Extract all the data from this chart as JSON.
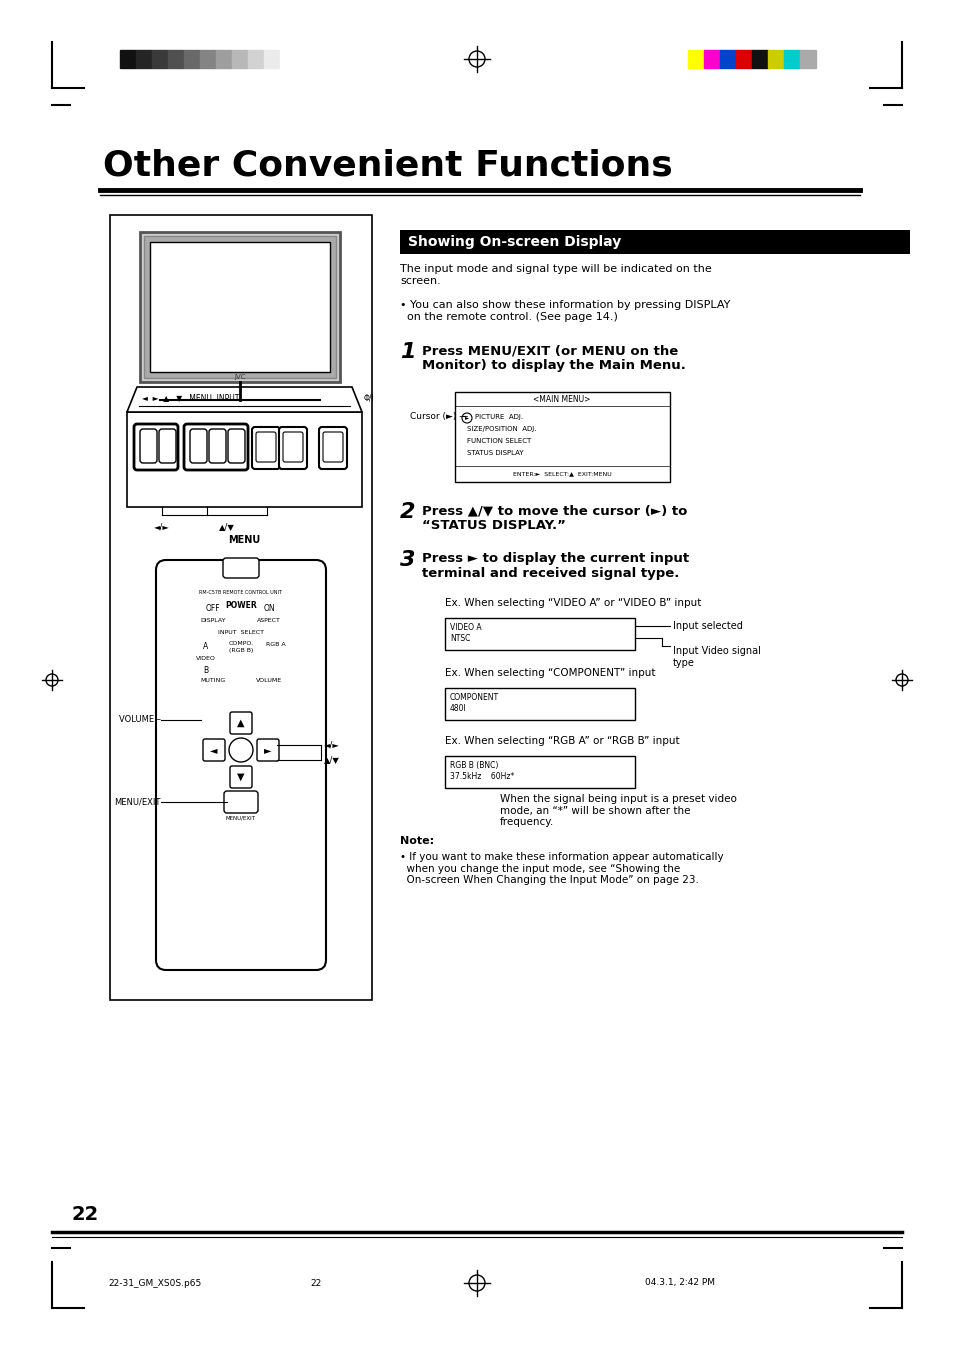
{
  "page_bg": "#ffffff",
  "page_title": "Other Convenient Functions",
  "section_title": "Showing On-screen Display",
  "section_title_bg": "#000000",
  "section_title_color": "#ffffff",
  "body_text_1": "The input mode and signal type will be indicated on the\nscreen.",
  "body_bullet_1": "• You can also show these information by pressing DISPLAY\n  on the remote control. (See page 14.)",
  "step1_num": "1",
  "step1_text": "Press MENU/EXIT (or MENU on the\nMonitor) to display the Main Menu.",
  "step2_num": "2",
  "step2_text": "Press ▲/▼ to move the cursor (►) to\n“STATUS DISPLAY.”",
  "step3_num": "3",
  "step3_text": "Press ► to display the current input\nterminal and received signal type.",
  "ex1_label": "Ex. When selecting “VIDEO A” or “VIDEO B” input",
  "ex1_line1": "VIDEO A",
  "ex1_line2": "NTSC",
  "ex1_arrow1": "Input selected",
  "ex1_arrow2": "Input Video signal\ntype",
  "ex2_label": "Ex. When selecting “COMPONENT” input",
  "ex2_line1": "COMPONENT",
  "ex2_line2": "480I",
  "ex3_label": "Ex. When selecting “RGB A” or “RGB B” input",
  "ex3_line1": "RGB B (BNC)",
  "ex3_line2": "37.5kHz    60Hz*",
  "ex3_note": "When the signal being input is a preset video\nmode, an “*” will be shown after the\nfrequency.",
  "note_title": "Note:",
  "note_text": "• If you want to make these information appear automatically\n  when you change the input mode, see “Showing the\n  On-screen When Changing the Input Mode” on page 23.",
  "page_number": "22",
  "footer_left": "22-31_GM_XS0S.p65",
  "footer_center": "22",
  "footer_right": "04.3.1, 2:42 PM",
  "grayscale_colors": [
    "#111111",
    "#252525",
    "#3a3a3a",
    "#505050",
    "#696969",
    "#848484",
    "#9e9e9e",
    "#b8b8b8",
    "#d2d2d2",
    "#ebebeb",
    "#ffffff"
  ],
  "color_bar_colors": [
    "#ffff00",
    "#ff00cc",
    "#0044cc",
    "#dd0000",
    "#111111",
    "#cccc00",
    "#00cccc",
    "#aaaaaa"
  ],
  "menu_title": "<MAIN MENU>",
  "menu_items": [
    "PICTURE  ADJ.",
    "SIZE/POSITION  ADJ.",
    "FUNCTION SELECT",
    "STATUS DISPLAY"
  ],
  "menu_footer": "ENTER:►  SELECT:▲  EXIT:MENU"
}
